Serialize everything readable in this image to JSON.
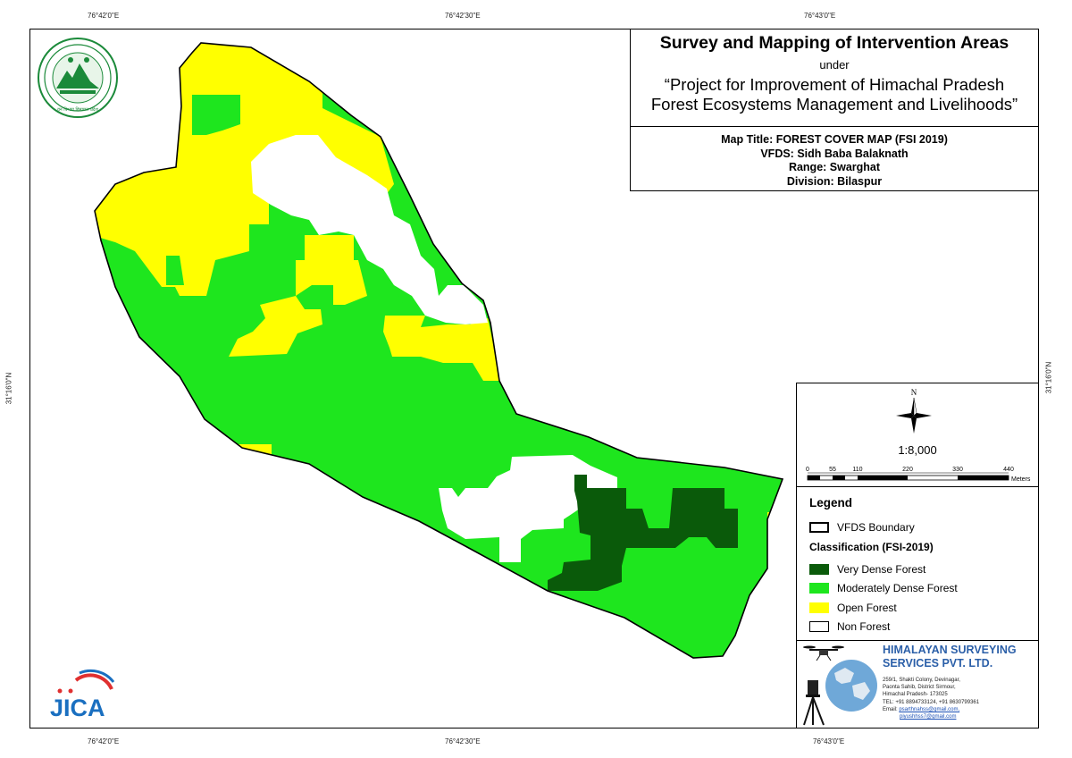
{
  "grid": {
    "top": [
      "76°42'0\"E",
      "76°42'30\"E",
      "76°43'0\"E"
    ],
    "bottom": [
      "76°42'0\"E",
      "76°42'30\"E",
      "76°43'0\"E"
    ],
    "left": "31°16'0\"N",
    "right": "31°16'0\"N"
  },
  "title_block": {
    "main_title": "Survey and Mapping of Intervention Areas",
    "under": "under",
    "project_line1": "“Project for Improvement of Himachal Pradesh",
    "project_line2": "Forest Ecosystems Management and Livelihoods”"
  },
  "map_info": {
    "map_title": "Map Title: FOREST COVER MAP (FSI 2019)",
    "vfds": "VFDS: Sidh Baba Balaknath",
    "range": "Range: Swarghat",
    "division": "Division: Bilaspur"
  },
  "north_arrow": {
    "label": "N"
  },
  "scale": {
    "ratio": "1:8,000",
    "ticks": [
      "0",
      "55",
      "110",
      "220",
      "330",
      "440"
    ],
    "unit": "Meters"
  },
  "legend": {
    "title": "Legend",
    "boundary_label": "VFDS Boundary",
    "classification_title": "Classification (FSI-2019)",
    "items": [
      {
        "label": "Very Dense Forest",
        "color": "#0a5a0a"
      },
      {
        "label": "Moderately Dense Forest",
        "color": "#1ee61e"
      },
      {
        "label": "Open Forest",
        "color": "#ffff00"
      },
      {
        "label": "Non Forest",
        "color": "#ffffff"
      }
    ]
  },
  "company": {
    "name_line1": "HIMALAYAN SURVEYING",
    "name_line2": "SERVICES PVT. LTD.",
    "address": [
      "259/1, Shakti Colony, Devinagar,",
      "Paonta Sahib, District Sirmour,",
      "Himachal Pradesh- 173025",
      "TEL: +91 8894733124, +91 8630799361"
    ],
    "email_label": "Email:",
    "emails": [
      "psarthnahss@gmail.com,",
      "piyushhss7@gmail.com"
    ]
  },
  "logos": {
    "hp_forest_text": "वन विभाग हिमाचल प्रदेश",
    "jica": "JICA"
  },
  "colors": {
    "very_dense": "#0a5a0a",
    "moderately_dense": "#1ee61e",
    "open": "#ffff00",
    "non_forest": "#ffffff",
    "company_blue": "#2b5fa8"
  }
}
